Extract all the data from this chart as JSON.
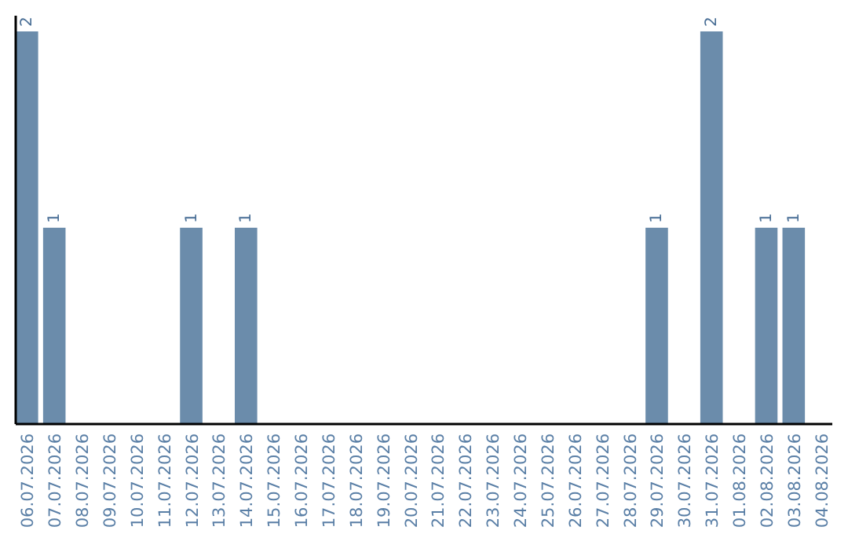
{
  "chart_data": {
    "type": "bar",
    "categories": [
      "06.07.2026",
      "07.07.2026",
      "08.07.2026",
      "09.07.2026",
      "10.07.2026",
      "11.07.2026",
      "12.07.2026",
      "13.07.2026",
      "14.07.2026",
      "15.07.2026",
      "16.07.2026",
      "17.07.2026",
      "18.07.2026",
      "19.07.2026",
      "20.07.2026",
      "21.07.2026",
      "22.07.2026",
      "23.07.2026",
      "24.07.2026",
      "25.07.2026",
      "26.07.2026",
      "27.07.2026",
      "28.07.2026",
      "29.07.2026",
      "30.07.2026",
      "31.07.2026",
      "01.08.2026",
      "02.08.2026",
      "03.08.2026",
      "04.08.2026"
    ],
    "values": [
      2,
      1,
      0,
      0,
      0,
      0,
      1,
      0,
      1,
      0,
      0,
      0,
      0,
      0,
      0,
      0,
      0,
      0,
      0,
      0,
      0,
      0,
      0,
      1,
      0,
      2,
      0,
      1,
      1,
      0
    ],
    "value_labels": [
      "2",
      "1",
      null,
      null,
      null,
      null,
      "1",
      null,
      "1",
      null,
      null,
      null,
      null,
      null,
      null,
      null,
      null,
      null,
      null,
      null,
      null,
      null,
      null,
      "1",
      null,
      "2",
      null,
      "1",
      "1",
      null
    ],
    "color": "#6b8cab",
    "tick_labels": "x",
    "grid": false
  }
}
